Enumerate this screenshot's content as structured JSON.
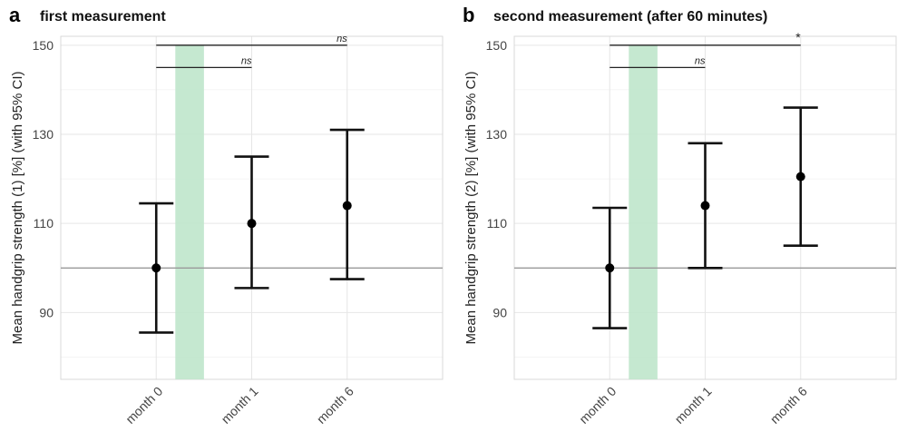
{
  "chart_data": [
    {
      "type": "errorbar",
      "panel_label": "a",
      "title": "first measurement",
      "ylabel": "Mean handgrip strength (1) [%] (with 95% CI)",
      "xlabel": "",
      "categories": [
        "month 0",
        "month 1",
        "month 6"
      ],
      "mean": [
        100,
        110,
        114
      ],
      "ci_low": [
        85.5,
        95.5,
        97.5
      ],
      "ci_high": [
        114.5,
        125,
        131
      ],
      "yticks": [
        90,
        110,
        130,
        150
      ],
      "ylim": [
        75,
        152
      ],
      "reference_line": 100,
      "shaded_band": {
        "x_from": 0.2,
        "x_to": 0.5,
        "y_from": 75,
        "y_to": 150,
        "color": "#bfe6cb"
      },
      "significance": [
        {
          "from": "month 0",
          "to": "month 1",
          "y": 145,
          "label": "ns"
        },
        {
          "from": "month 0",
          "to": "month 6",
          "y": 150,
          "label": "ns"
        }
      ],
      "grid": true,
      "colors": {
        "points": "#000000",
        "reference": "#9a9a9a",
        "band": "#bfe6cb"
      }
    },
    {
      "type": "errorbar",
      "panel_label": "b",
      "title": "second measurement (after 60 minutes)",
      "ylabel": "Mean handgrip strength (2) [%] (with 95% CI)",
      "xlabel": "",
      "categories": [
        "month 0",
        "month 1",
        "month 6"
      ],
      "mean": [
        100,
        114,
        120.5
      ],
      "ci_low": [
        86.5,
        100,
        105
      ],
      "ci_high": [
        113.5,
        128,
        136
      ],
      "yticks": [
        90,
        110,
        130,
        150
      ],
      "ylim": [
        75,
        152
      ],
      "reference_line": 100,
      "shaded_band": {
        "x_from": 0.2,
        "x_to": 0.5,
        "y_from": 75,
        "y_to": 150,
        "color": "#bfe6cb"
      },
      "significance": [
        {
          "from": "month 0",
          "to": "month 1",
          "y": 145,
          "label": "ns"
        },
        {
          "from": "month 0",
          "to": "month 6",
          "y": 150,
          "label": "*"
        }
      ],
      "grid": true,
      "colors": {
        "points": "#000000",
        "reference": "#9a9a9a",
        "band": "#bfe6cb"
      }
    }
  ]
}
